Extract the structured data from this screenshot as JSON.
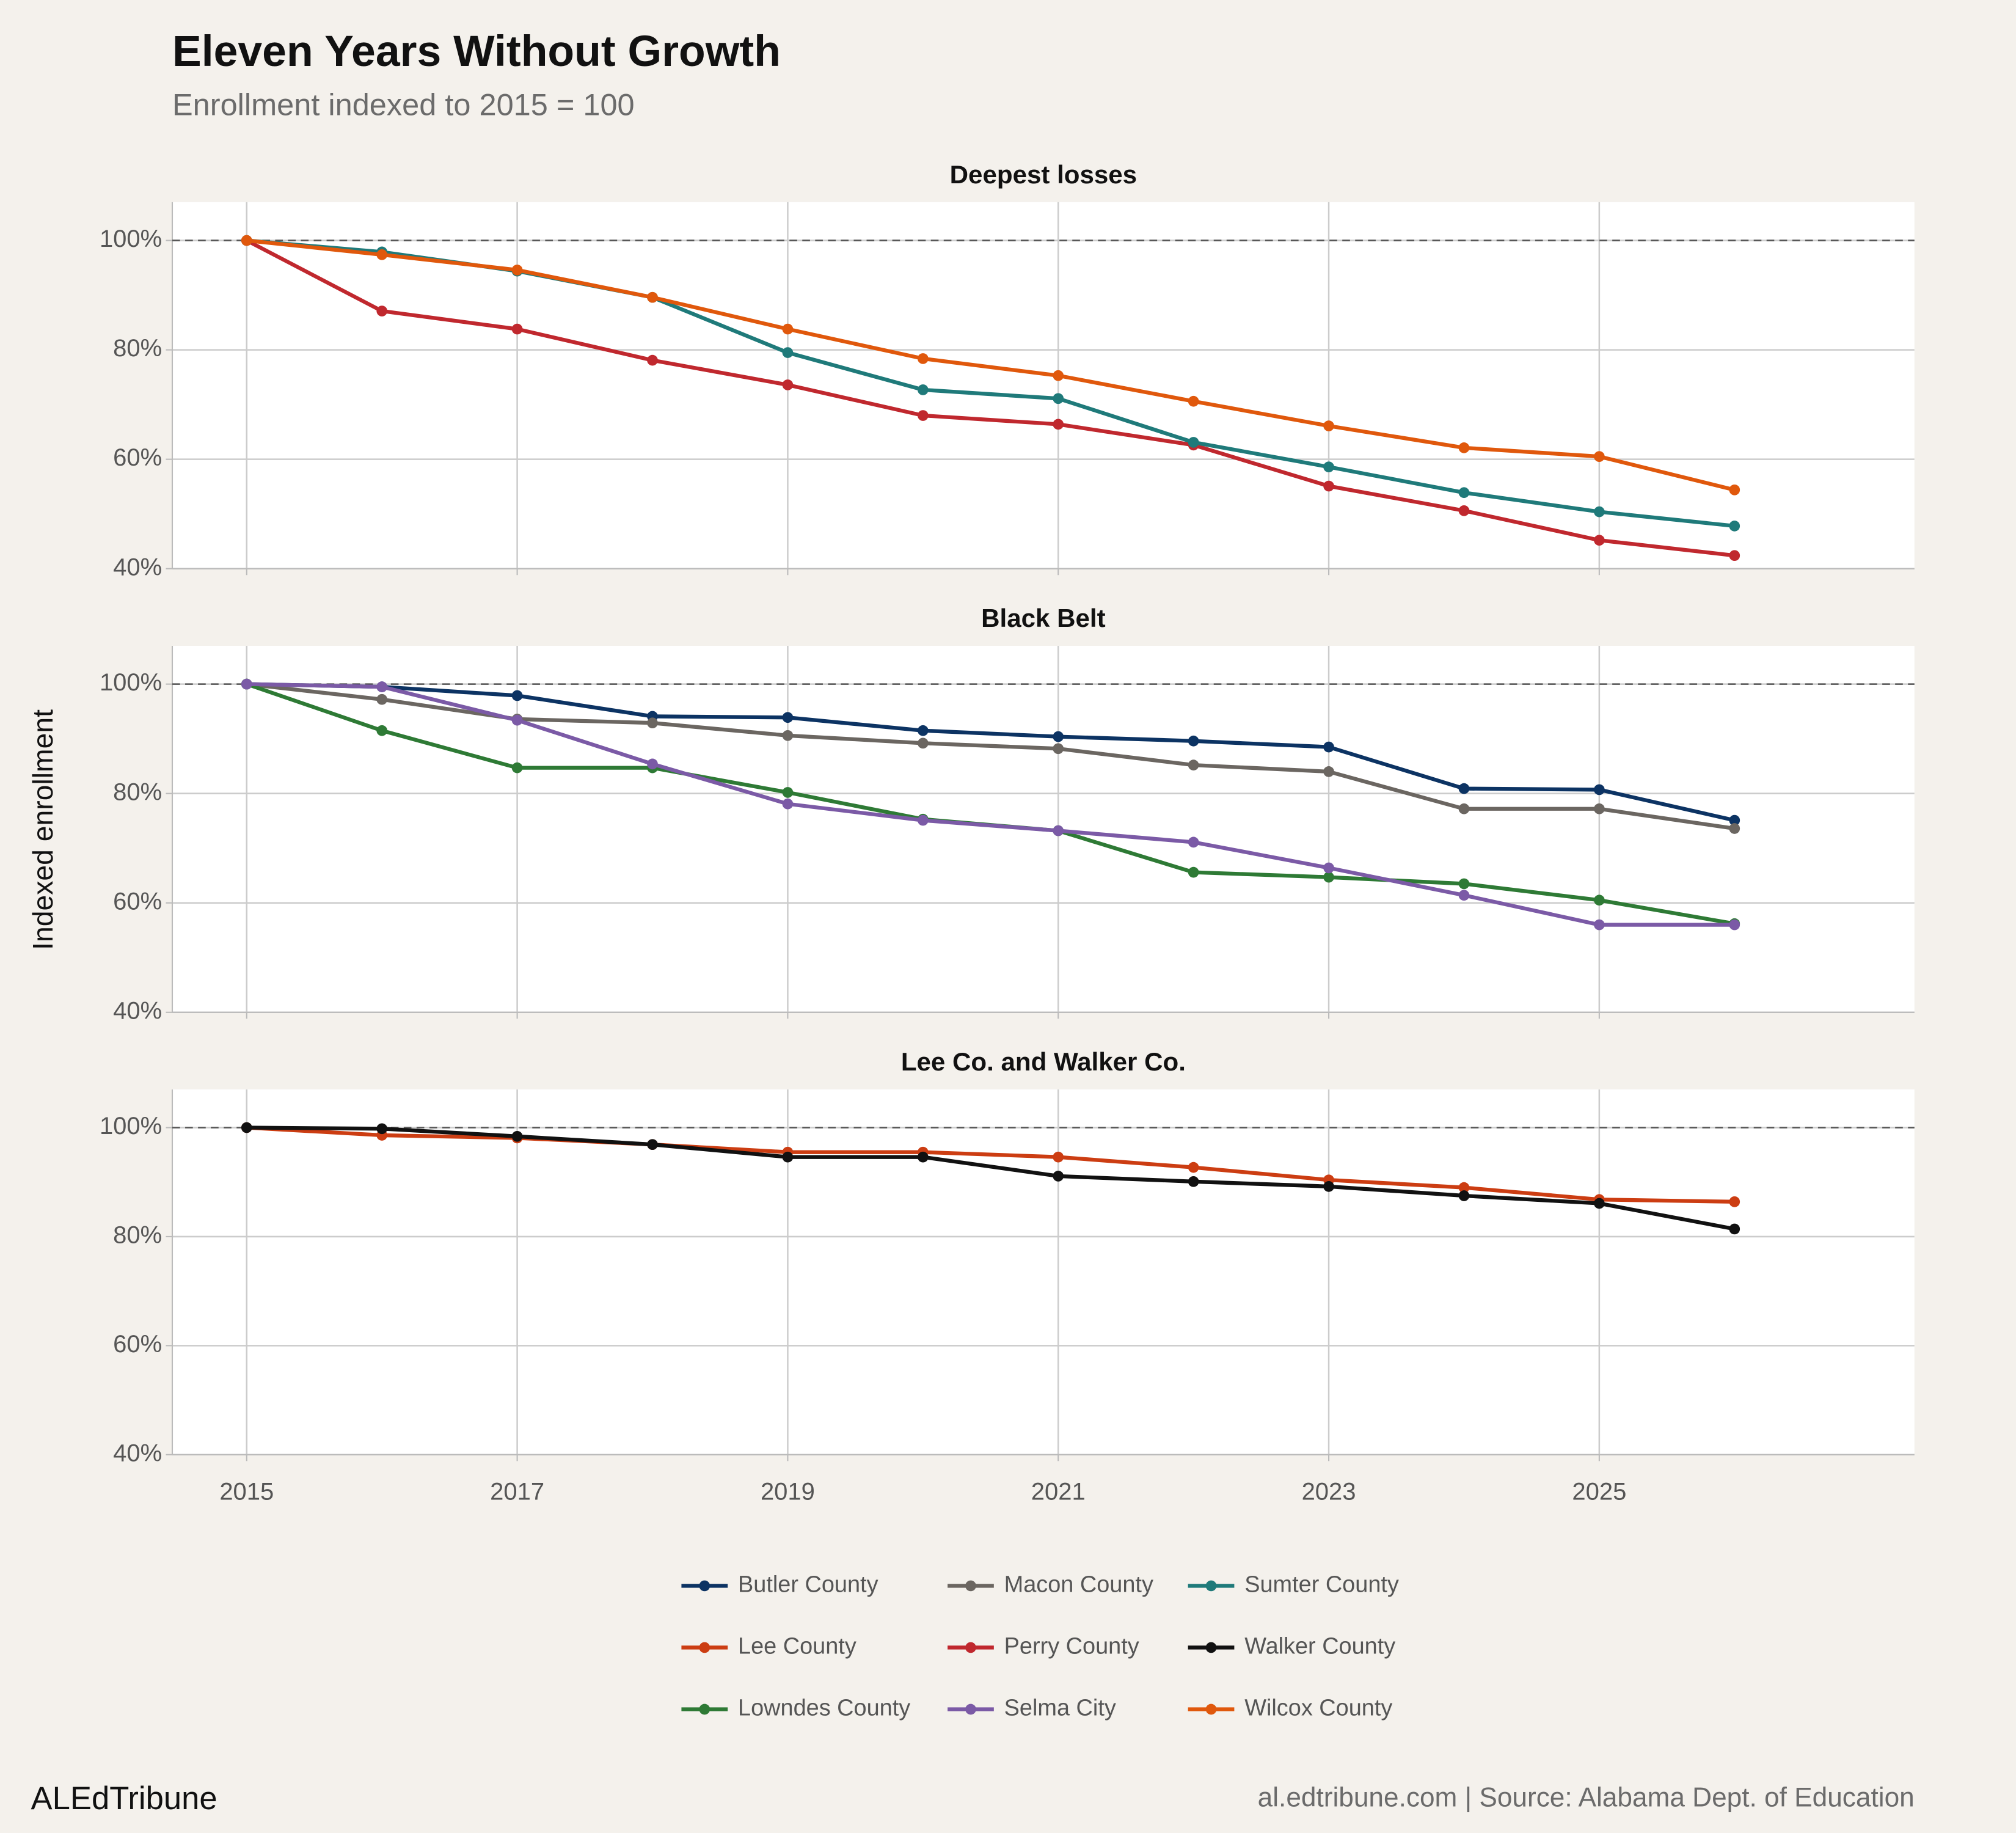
{
  "title": "Eleven Years Without Growth",
  "subtitle": "Enrollment indexed to 2015 = 100",
  "y_label": "Indexed enrollment",
  "brand": "ALEdTribune",
  "source": "al.edtribune.com | Source: Alabama Dept. of Education",
  "chart_data": [
    {
      "type": "line",
      "title": "Deepest losses",
      "x": [
        2015,
        2016,
        2017,
        2018,
        2019,
        2020,
        2021,
        2022,
        2023,
        2024,
        2025,
        2026
      ],
      "series": [
        {
          "name": "Perry County",
          "color": "#c0282e",
          "values": [
            100,
            87.1,
            83.8,
            78.1,
            73.6,
            68.0,
            66.4,
            62.6,
            55.1,
            50.6,
            45.2,
            42.4
          ]
        },
        {
          "name": "Sumter County",
          "color": "#1f7a7a",
          "values": [
            100,
            97.9,
            94.4,
            89.6,
            79.5,
            72.7,
            71.1,
            63.1,
            58.6,
            53.9,
            50.4,
            47.8
          ]
        },
        {
          "name": "Wilcox County",
          "color": "#e0580c",
          "values": [
            100,
            97.4,
            94.6,
            89.6,
            83.8,
            78.4,
            75.3,
            70.6,
            66.1,
            62.1,
            60.5,
            54.4
          ]
        }
      ],
      "xlim": [
        2014.45,
        2027.33
      ],
      "xticks": [
        2015,
        2017,
        2019,
        2021,
        2023,
        2025
      ],
      "ylim": [
        40,
        107
      ],
      "yticks": [
        {
          "value": 40,
          "label": "40%"
        },
        {
          "value": 60,
          "label": "60%"
        },
        {
          "value": 80,
          "label": "80%"
        },
        {
          "value": 100,
          "label": "100%"
        }
      ],
      "grid": true,
      "reference_line": 100
    },
    {
      "type": "line",
      "title": "Black Belt",
      "x": [
        2015,
        2016,
        2017,
        2018,
        2019,
        2020,
        2021,
        2022,
        2023,
        2024,
        2025,
        2026
      ],
      "series": [
        {
          "name": "Butler County",
          "color": "#0c3363",
          "values": [
            100,
            99.5,
            97.9,
            94.1,
            93.9,
            91.5,
            90.4,
            89.6,
            88.5,
            80.9,
            80.7,
            75.1
          ]
        },
        {
          "name": "Macon County",
          "color": "#6b6661",
          "values": [
            100,
            97.2,
            93.6,
            92.9,
            90.6,
            89.2,
            88.2,
            85.2,
            84.0,
            77.2,
            77.2,
            73.6
          ]
        },
        {
          "name": "Lowndes County",
          "color": "#2e7a35",
          "values": [
            100,
            91.5,
            84.7,
            84.7,
            80.2,
            75.3,
            73.2,
            65.6,
            64.7,
            63.5,
            60.5,
            56.2
          ]
        },
        {
          "name": "Selma City",
          "color": "#7b5aa6",
          "values": [
            100,
            99.5,
            93.4,
            85.4,
            78.1,
            75.1,
            73.2,
            71.1,
            66.4,
            61.4,
            56.0,
            56.0
          ]
        }
      ],
      "xlim": [
        2014.45,
        2027.33
      ],
      "xticks": [
        2015,
        2017,
        2019,
        2021,
        2023,
        2025
      ],
      "ylim": [
        40,
        107
      ],
      "yticks": [
        {
          "value": 40,
          "label": "40%"
        },
        {
          "value": 60,
          "label": "60%"
        },
        {
          "value": 80,
          "label": "80%"
        },
        {
          "value": 100,
          "label": "100%"
        }
      ],
      "grid": true,
      "reference_line": 100
    },
    {
      "type": "line",
      "title": "Lee Co. and Walker Co.",
      "x": [
        2015,
        2016,
        2017,
        2018,
        2019,
        2020,
        2021,
        2022,
        2023,
        2024,
        2025,
        2026
      ],
      "series": [
        {
          "name": "Lee County",
          "color": "#cc3d12",
          "values": [
            100,
            98.6,
            98.1,
            96.9,
            95.5,
            95.5,
            94.6,
            92.7,
            90.4,
            89.0,
            86.8,
            86.4
          ]
        },
        {
          "name": "Walker County",
          "color": "#111111",
          "values": [
            100,
            99.8,
            98.4,
            96.9,
            94.6,
            94.6,
            91.1,
            90.1,
            89.2,
            87.5,
            86.1,
            81.4
          ]
        }
      ],
      "xlim": [
        2014.45,
        2027.33
      ],
      "xticks": [
        2015,
        2017,
        2019,
        2021,
        2023,
        2025
      ],
      "ylim": [
        40,
        107
      ],
      "yticks": [
        {
          "value": 40,
          "label": "40%"
        },
        {
          "value": 60,
          "label": "60%"
        },
        {
          "value": 80,
          "label": "80%"
        },
        {
          "value": 100,
          "label": "100%"
        }
      ],
      "grid": true,
      "reference_line": 100
    }
  ]
}
